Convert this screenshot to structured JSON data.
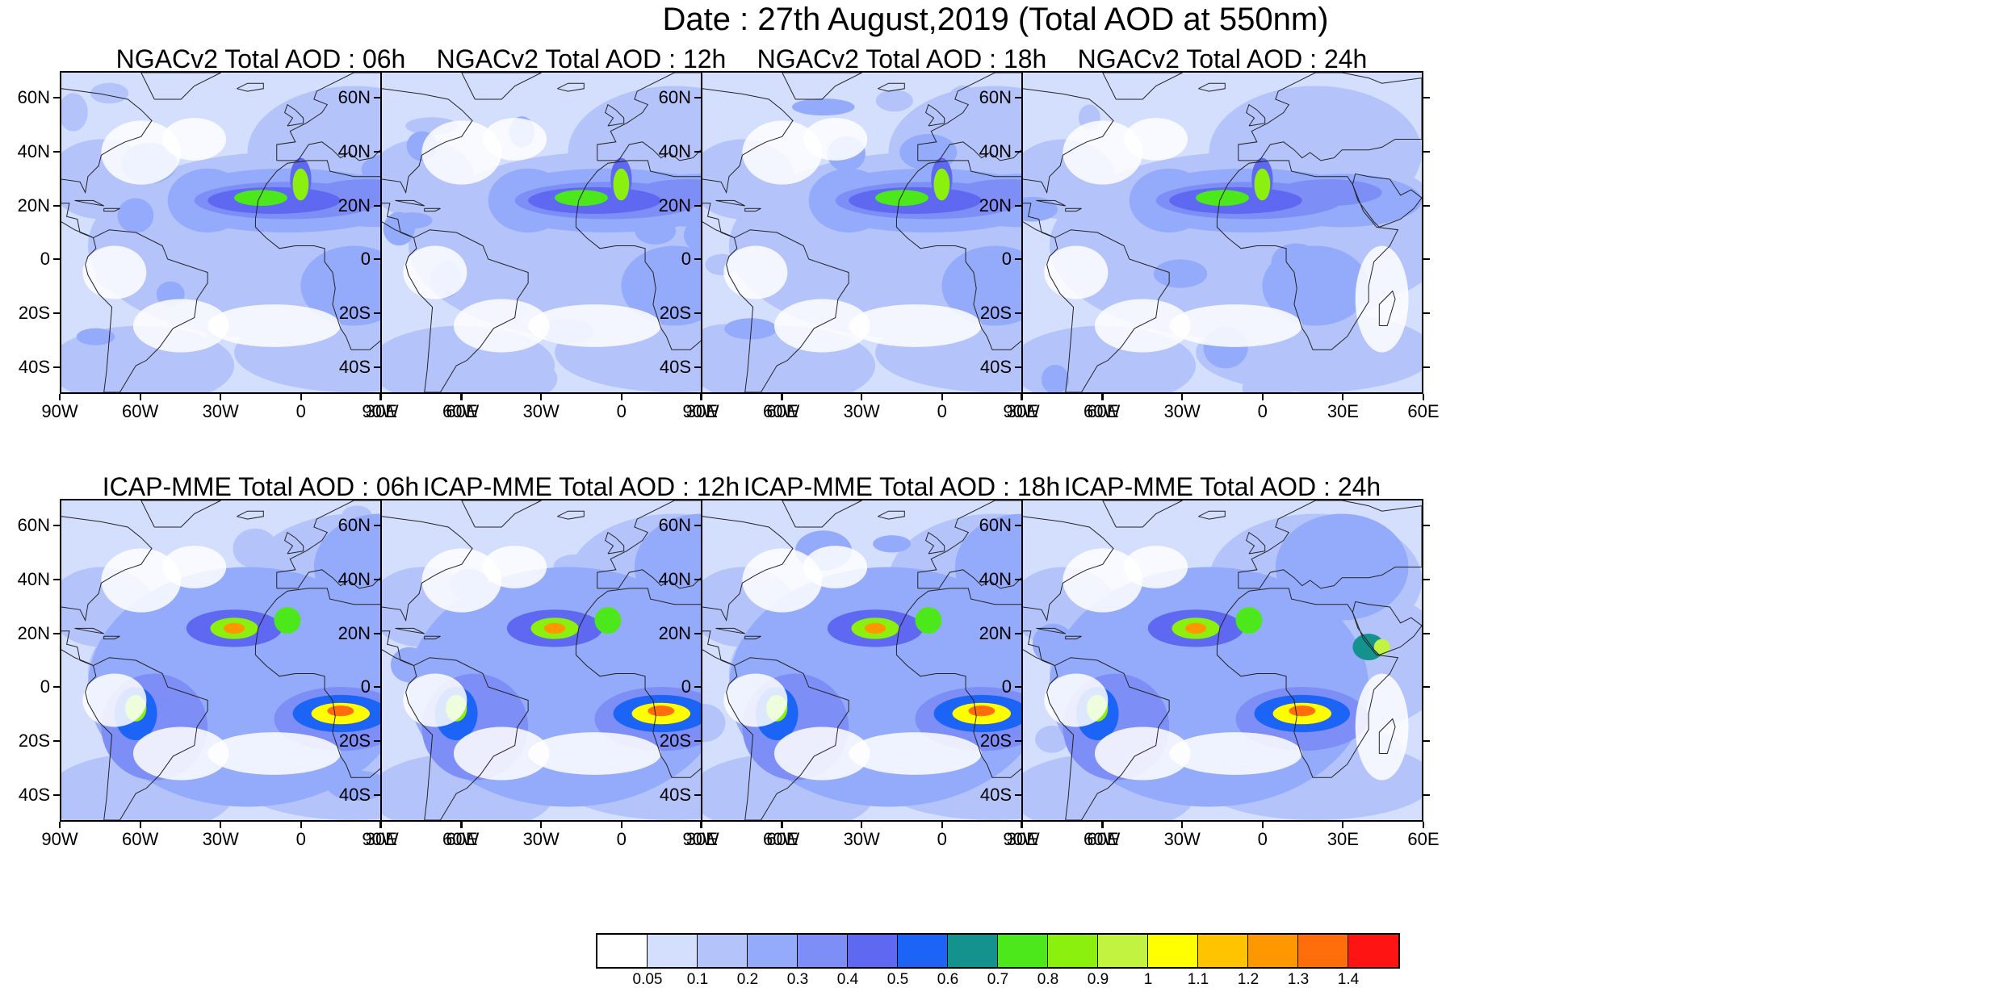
{
  "title": "Date : 27th August,2019 (Total AOD at 550nm)",
  "panels": [
    {
      "title": "NGACv2 Total AOD : 06h",
      "model": "NGACv2",
      "hour": "06h"
    },
    {
      "title": "NGACv2 Total AOD : 12h",
      "model": "NGACv2",
      "hour": "12h"
    },
    {
      "title": "NGACv2 Total AOD : 18h",
      "model": "NGACv2",
      "hour": "18h"
    },
    {
      "title": "NGACv2 Total AOD : 24h",
      "model": "NGACv2",
      "hour": "24h"
    },
    {
      "title": "ICAP-MME Total AOD : 06h",
      "model": "ICAP-MME",
      "hour": "06h"
    },
    {
      "title": "ICAP-MME Total AOD : 12h",
      "model": "ICAP-MME",
      "hour": "12h"
    },
    {
      "title": "ICAP-MME Total AOD : 18h",
      "model": "ICAP-MME",
      "hour": "18h"
    },
    {
      "title": "ICAP-MME Total AOD : 24h",
      "model": "ICAP-MME",
      "hour": "24h"
    }
  ],
  "lat_labels": [
    "60N",
    "40N",
    "20N",
    "0",
    "20S",
    "40S"
  ],
  "lon_labels": [
    "90W",
    "60W",
    "30W",
    "0",
    "30E",
    "60E"
  ],
  "map_extent": {
    "lon": [
      -90,
      60
    ],
    "lat": [
      -50,
      70
    ]
  },
  "colorbar": {
    "labels": [
      "0.05",
      "0.1",
      "0.2",
      "0.3",
      "0.4",
      "0.5",
      "0.6",
      "0.7",
      "0.8",
      "0.9",
      "1",
      "1.1",
      "1.2",
      "1.3",
      "1.4"
    ],
    "colors": [
      "#ffffff",
      "#d4defd",
      "#b4c4fb",
      "#94aafa",
      "#7d8ff6",
      "#5e68f0",
      "#1b64f5",
      "#14928e",
      "#4de81c",
      "#8cf00f",
      "#c3f341",
      "#ffff00",
      "#ffc300",
      "#ff9800",
      "#ff6e0a",
      "#ff1414"
    ]
  }
}
